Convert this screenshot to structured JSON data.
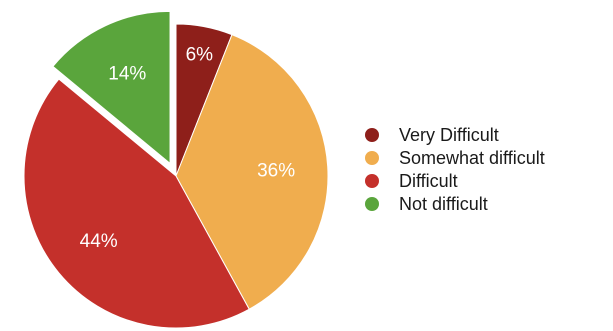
{
  "chart_data": {
    "type": "pie",
    "title": "",
    "slices": [
      {
        "label": "Very Difficult",
        "value": 6,
        "display": "6%",
        "color": "#8e1f1a"
      },
      {
        "label": "Somewhat difficult",
        "value": 36,
        "display": "36%",
        "color": "#f0ad4e"
      },
      {
        "label": "Difficult",
        "value": 44,
        "display": "44%",
        "color": "#c4302b"
      },
      {
        "label": "Not difficult",
        "value": 14,
        "display": "14%",
        "color": "#5aa53c",
        "exploded": true
      }
    ],
    "legend": {
      "position": "right",
      "entries": [
        "Very Difficult",
        "Somewhat difficult",
        "Difficult",
        "Not difficult"
      ]
    }
  }
}
